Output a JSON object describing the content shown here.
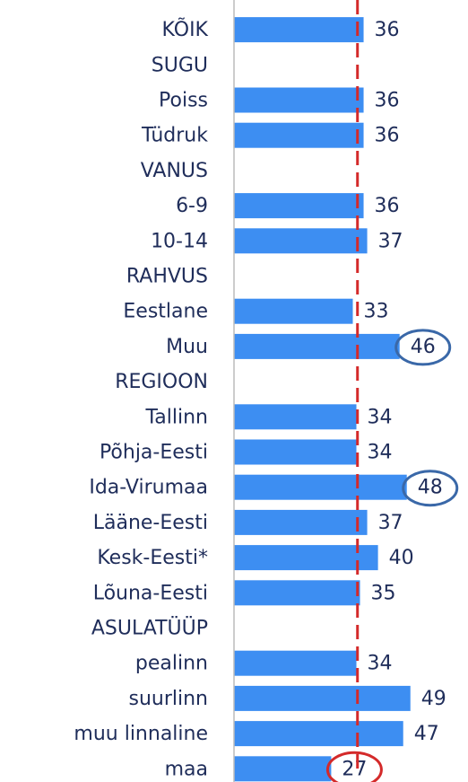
{
  "chart_data": {
    "type": "bar",
    "orientation": "horizontal",
    "categories": [
      "KÕIK",
      "SUGU",
      "Poiss",
      "Tüdruk",
      "VANUS",
      "6-9",
      "10-14",
      "RAHVUS",
      "Eestlane",
      "Muu",
      "REGIOON",
      "Tallinn",
      "Põhja-Eesti",
      "Ida-Virumaa",
      "Lääne-Eesti",
      "Kesk-Eesti*",
      "Lõuna-Eesti",
      "ASULATÜÜP",
      "pealinn",
      "suurlinn",
      "muu linnaline",
      "maa"
    ],
    "values": [
      36,
      null,
      36,
      36,
      null,
      36,
      37,
      null,
      33,
      46,
      null,
      34,
      34,
      48,
      37,
      40,
      35,
      null,
      34,
      49,
      47,
      27
    ],
    "color": "#3d8ef2",
    "xlim": [
      0,
      65
    ],
    "reference_line": {
      "value": 34.3,
      "color": "#d42a2a"
    },
    "highlights": [
      {
        "category": "Muu",
        "color": "#3a68a8"
      },
      {
        "category": "Ida-Virumaa",
        "color": "#3a68a8"
      },
      {
        "category": "maa",
        "color": "#d42a2a"
      }
    ]
  }
}
